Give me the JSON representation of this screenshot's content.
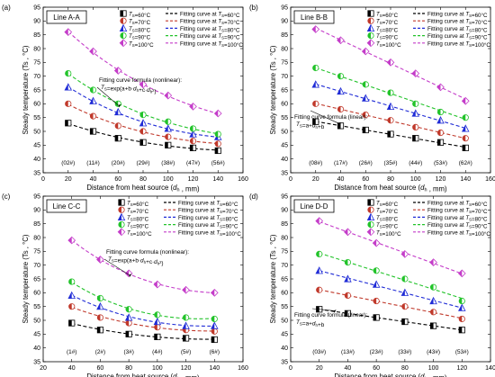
{
  "colors": {
    "60": "#000000",
    "70": "#c0392b",
    "80": "#1f2bd6",
    "90": "#22c32a",
    "100": "#c43cc9"
  },
  "markers": {
    "60": "square-half",
    "70": "circle-half",
    "80": "triangle-half",
    "90": "circle-half",
    "100": "diamond-half"
  },
  "legend": {
    "points": [
      "TS=60°C",
      "TS=70°C",
      "TS=80°C",
      "TS=90°C",
      "TS=100°C"
    ],
    "curves": [
      "Fitting curve at TS=60°C",
      "Fitting curve at TS=70°C",
      "Fitting curve at TS=80°C",
      "Fitting curve at TS=90°C",
      "Fitting curve at TS=100°C"
    ]
  },
  "chart_data": [
    {
      "type": "scatter",
      "panel_letter": "(a)",
      "line_label": "Line A-A",
      "xlabel": "Distance from heat source (dh , mm)",
      "ylabel": "Steady temperature (Ts , °C)",
      "xlim": [
        0,
        160
      ],
      "ylim": [
        35,
        95
      ],
      "xticks": [
        0,
        20,
        40,
        60,
        80,
        100,
        120,
        140,
        160
      ],
      "yticks": [
        35,
        40,
        45,
        50,
        55,
        60,
        65,
        70,
        75,
        80,
        85,
        90,
        95
      ],
      "formula_title": "Fitting curve formula (nonlinear):",
      "formula": "TS=exp(a+b·dh+c·dh²)",
      "sensor_labels": [
        "(02#)",
        "(11#)",
        "(20#)",
        "(29#)",
        "(38#)",
        "(47#)",
        "(56#)"
      ],
      "x": [
        20,
        40,
        60,
        80,
        100,
        120,
        140
      ],
      "series": [
        {
          "key": "60",
          "values": [
            53,
            50,
            47.5,
            46,
            45,
            44,
            43
          ]
        },
        {
          "key": "70",
          "values": [
            60,
            55.5,
            52,
            50,
            48,
            46.5,
            45.5
          ]
        },
        {
          "key": "80",
          "values": [
            66,
            61,
            57,
            53,
            51,
            49,
            48
          ]
        },
        {
          "key": "90",
          "values": [
            71,
            65,
            60,
            56,
            53.5,
            51,
            49
          ]
        },
        {
          "key": "100",
          "values": [
            86,
            79,
            72,
            67,
            63,
            59,
            56.5
          ]
        }
      ]
    },
    {
      "type": "scatter",
      "panel_letter": "(b)",
      "line_label": "Line B-B",
      "xlabel": "Distance from heat source (dh , mm)",
      "ylabel": "Steady temperature (Ts , °C)",
      "xlim": [
        0,
        160
      ],
      "ylim": [
        35,
        95
      ],
      "xticks": [
        0,
        20,
        40,
        60,
        80,
        100,
        120,
        140,
        160
      ],
      "yticks": [
        35,
        40,
        45,
        50,
        55,
        60,
        65,
        70,
        75,
        80,
        85,
        90,
        95
      ],
      "formula_title": "Fitting curve formula (linear):",
      "formula": "TS=a+dh+b",
      "sensor_labels": [
        "(08#)",
        "(17#)",
        "(26#)",
        "(35#)",
        "(44#)",
        "(53#)",
        "(62#)"
      ],
      "x": [
        20,
        40,
        60,
        80,
        100,
        120,
        140
      ],
      "series": [
        {
          "key": "60",
          "values": [
            53.5,
            52,
            50.5,
            49,
            47.5,
            46,
            44
          ]
        },
        {
          "key": "70",
          "values": [
            60,
            58,
            56,
            54,
            51.5,
            49.5,
            47.5
          ]
        },
        {
          "key": "80",
          "values": [
            67,
            64.5,
            62,
            59,
            56.5,
            54,
            51
          ]
        },
        {
          "key": "90",
          "values": [
            73,
            70,
            67,
            64,
            60,
            57,
            55
          ]
        },
        {
          "key": "100",
          "values": [
            87,
            83,
            79,
            75,
            71,
            66,
            61
          ]
        }
      ]
    },
    {
      "type": "scatter",
      "panel_letter": "(c)",
      "line_label": "Line C-C",
      "xlabel": "Distance from heat source (dh , mm)",
      "ylabel": "Steady temperature (Ts , °C)",
      "xlim": [
        20,
        160
      ],
      "ylim": [
        35,
        95
      ],
      "xticks": [
        20,
        40,
        60,
        80,
        100,
        120,
        140,
        160
      ],
      "yticks": [
        35,
        40,
        45,
        50,
        55,
        60,
        65,
        70,
        75,
        80,
        85,
        90,
        95
      ],
      "formula_title": "Fitting curve formula (nonlinear):",
      "formula": "TS=exp(a+b·dh+c·dh²)",
      "sensor_labels": [
        "(1#)",
        "(2#)",
        "(3#)",
        "(4#)",
        "(5#)",
        "(6#)"
      ],
      "x": [
        40,
        60,
        80,
        100,
        120,
        140
      ],
      "series": [
        {
          "key": "60",
          "values": [
            49,
            46.5,
            45,
            44,
            43.5,
            43
          ]
        },
        {
          "key": "70",
          "values": [
            55,
            51,
            49,
            47.5,
            46.5,
            46
          ]
        },
        {
          "key": "80",
          "values": [
            59,
            55,
            51,
            49.5,
            48,
            48
          ]
        },
        {
          "key": "90",
          "values": [
            64,
            58,
            54,
            52,
            51,
            50.5
          ]
        },
        {
          "key": "100",
          "values": [
            79,
            72,
            67,
            63,
            61,
            60
          ]
        }
      ]
    },
    {
      "type": "scatter",
      "panel_letter": "(d)",
      "line_label": "Line D-D",
      "xlabel": "Distance from heat source (dh , mm)",
      "ylabel": "Steady temperature (Ts , °C)",
      "xlim": [
        0,
        140
      ],
      "ylim": [
        35,
        95
      ],
      "xticks": [
        0,
        20,
        40,
        60,
        80,
        100,
        120,
        140
      ],
      "yticks": [
        35,
        40,
        45,
        50,
        55,
        60,
        65,
        70,
        75,
        80,
        85,
        90,
        95
      ],
      "formula_title": "Fitting curve formula (linear):",
      "formula": "TS=a+dh+b",
      "sensor_labels": [
        "(03#)",
        "(13#)",
        "(23#)",
        "(33#)",
        "(43#)",
        "(53#)"
      ],
      "x": [
        20,
        40,
        60,
        80,
        100,
        120
      ],
      "series": [
        {
          "key": "60",
          "values": [
            54,
            52.5,
            51,
            49.5,
            48,
            46.5
          ]
        },
        {
          "key": "70",
          "values": [
            61,
            59,
            57,
            55,
            53,
            50.5
          ]
        },
        {
          "key": "80",
          "values": [
            68,
            65,
            63,
            60,
            57,
            54.5
          ]
        },
        {
          "key": "90",
          "values": [
            74,
            71,
            68,
            65,
            62,
            57
          ]
        },
        {
          "key": "100",
          "values": [
            86,
            82,
            78,
            74,
            71,
            67
          ]
        }
      ]
    }
  ]
}
